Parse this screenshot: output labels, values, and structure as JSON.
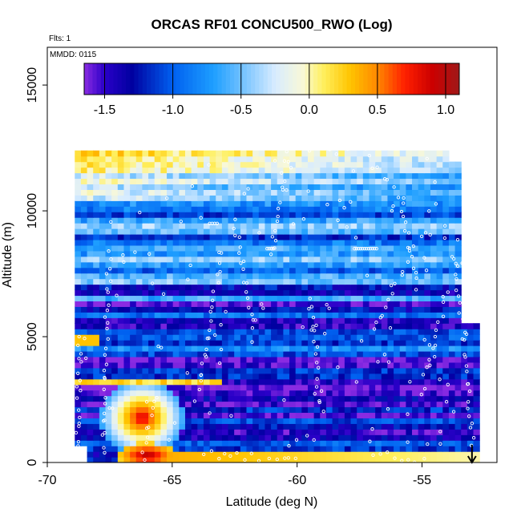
{
  "chart_data": {
    "type": "heatmap",
    "title": "ORCAS RF01 CONCU500_RWO (Log)",
    "xlabel": "Latitude (deg N)",
    "ylabel": "Altitude (m)",
    "xlim": [
      -70,
      -52
    ],
    "ylim": [
      0,
      16500
    ],
    "x_ticks": [
      -70,
      -65,
      -60,
      -55
    ],
    "x_tick_labels": [
      "-70",
      "-65",
      "-60",
      "-55"
    ],
    "y_ticks": [
      0,
      5000,
      10000,
      15000
    ],
    "y_tick_labels": [
      "0",
      "5000",
      "10000",
      "15000"
    ],
    "annotation_flts": "Flts: 1",
    "annotation_mmdd": "MMDD: 0115",
    "colorbar": {
      "range": [
        -1.65,
        1.1
      ],
      "ticks": [
        -1.5,
        -1.0,
        -0.5,
        0.0,
        0.5,
        1.0
      ],
      "tick_labels": [
        "-1.5",
        "-1.0",
        "-0.5",
        "0.0",
        "0.5",
        "1.0"
      ],
      "stops": [
        {
          "v": -1.65,
          "c": "#8a2be2"
        },
        {
          "v": -1.5,
          "c": "#2a00c8"
        },
        {
          "v": -1.3,
          "c": "#0000a0"
        },
        {
          "v": -1.0,
          "c": "#0060f0"
        },
        {
          "v": -0.7,
          "c": "#1e9fff"
        },
        {
          "v": -0.5,
          "c": "#6fc0ff"
        },
        {
          "v": -0.25,
          "c": "#d8ecff"
        },
        {
          "v": -0.05,
          "c": "#f8f8d8"
        },
        {
          "v": 0.1,
          "c": "#fff060"
        },
        {
          "v": 0.3,
          "c": "#ffc400"
        },
        {
          "v": 0.5,
          "c": "#ff8800"
        },
        {
          "v": 0.7,
          "c": "#ff2000"
        },
        {
          "v": 0.9,
          "c": "#cc0000"
        },
        {
          "v": 1.1,
          "c": "#a01818"
        }
      ]
    },
    "grid": false,
    "legend": "colorbar top",
    "descent_arrow": {
      "lat": -53.0,
      "alt_from": 700,
      "alt_to": 0
    },
    "field_extent": {
      "lat_min": -68.9,
      "lat_max": -52.7,
      "alt_min": 0,
      "alt_max": 12400
    }
  }
}
